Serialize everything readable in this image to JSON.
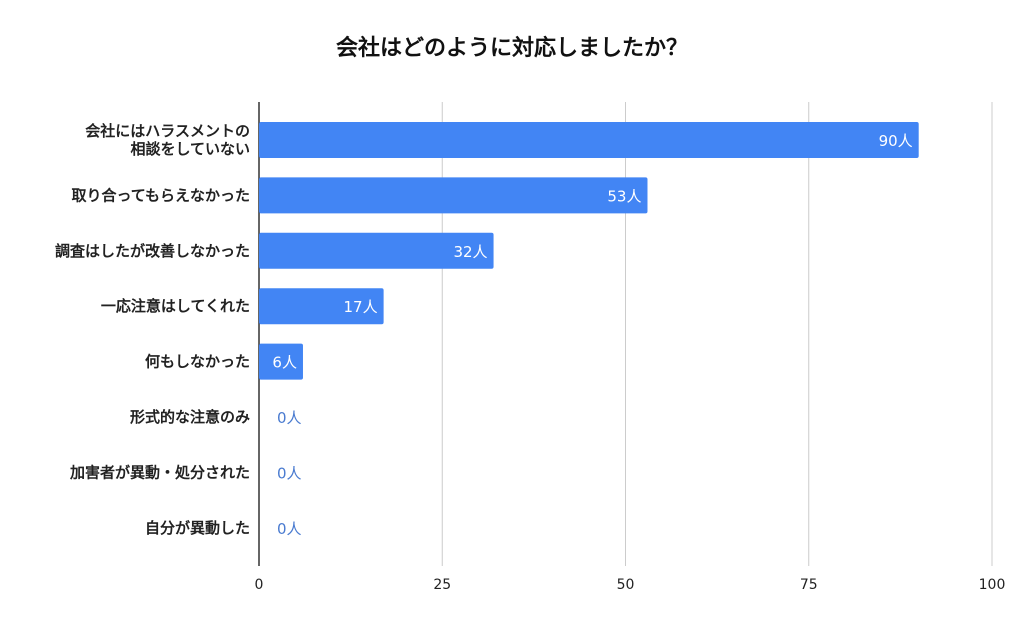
{
  "chart_data": {
    "type": "bar",
    "orientation": "horizontal",
    "title": "会社はどのように対応しましたか？",
    "categories": [
      [
        "会社にはハラスメントの",
        "相談をしていない"
      ],
      [
        "取り合ってもらえなかった"
      ],
      [
        "調査はしたが改善しなかった"
      ],
      [
        "一応注意はしてくれた"
      ],
      [
        "何もしなかった"
      ],
      [
        "形式的な注意のみ"
      ],
      [
        "加害者が異動・処分された"
      ],
      [
        "自分が異動した"
      ]
    ],
    "values": [
      90,
      53,
      32,
      17,
      6,
      0,
      0,
      0
    ],
    "value_suffix": "人",
    "data_labels": [
      "90人",
      "53人",
      "32人",
      "17人",
      "6人",
      "0人",
      "0人",
      "0人"
    ],
    "xlim": [
      0,
      100
    ],
    "xticks": [
      0,
      25,
      50,
      75,
      100
    ],
    "xtick_labels": [
      "0",
      "25",
      "50",
      "75",
      "100"
    ],
    "grid": true,
    "xlabel": "",
    "ylabel": "",
    "colors": {
      "bar": "#4285f4",
      "zero_label": "#4a7bd0",
      "grid": "#cccccc",
      "axis": "#333333"
    }
  }
}
